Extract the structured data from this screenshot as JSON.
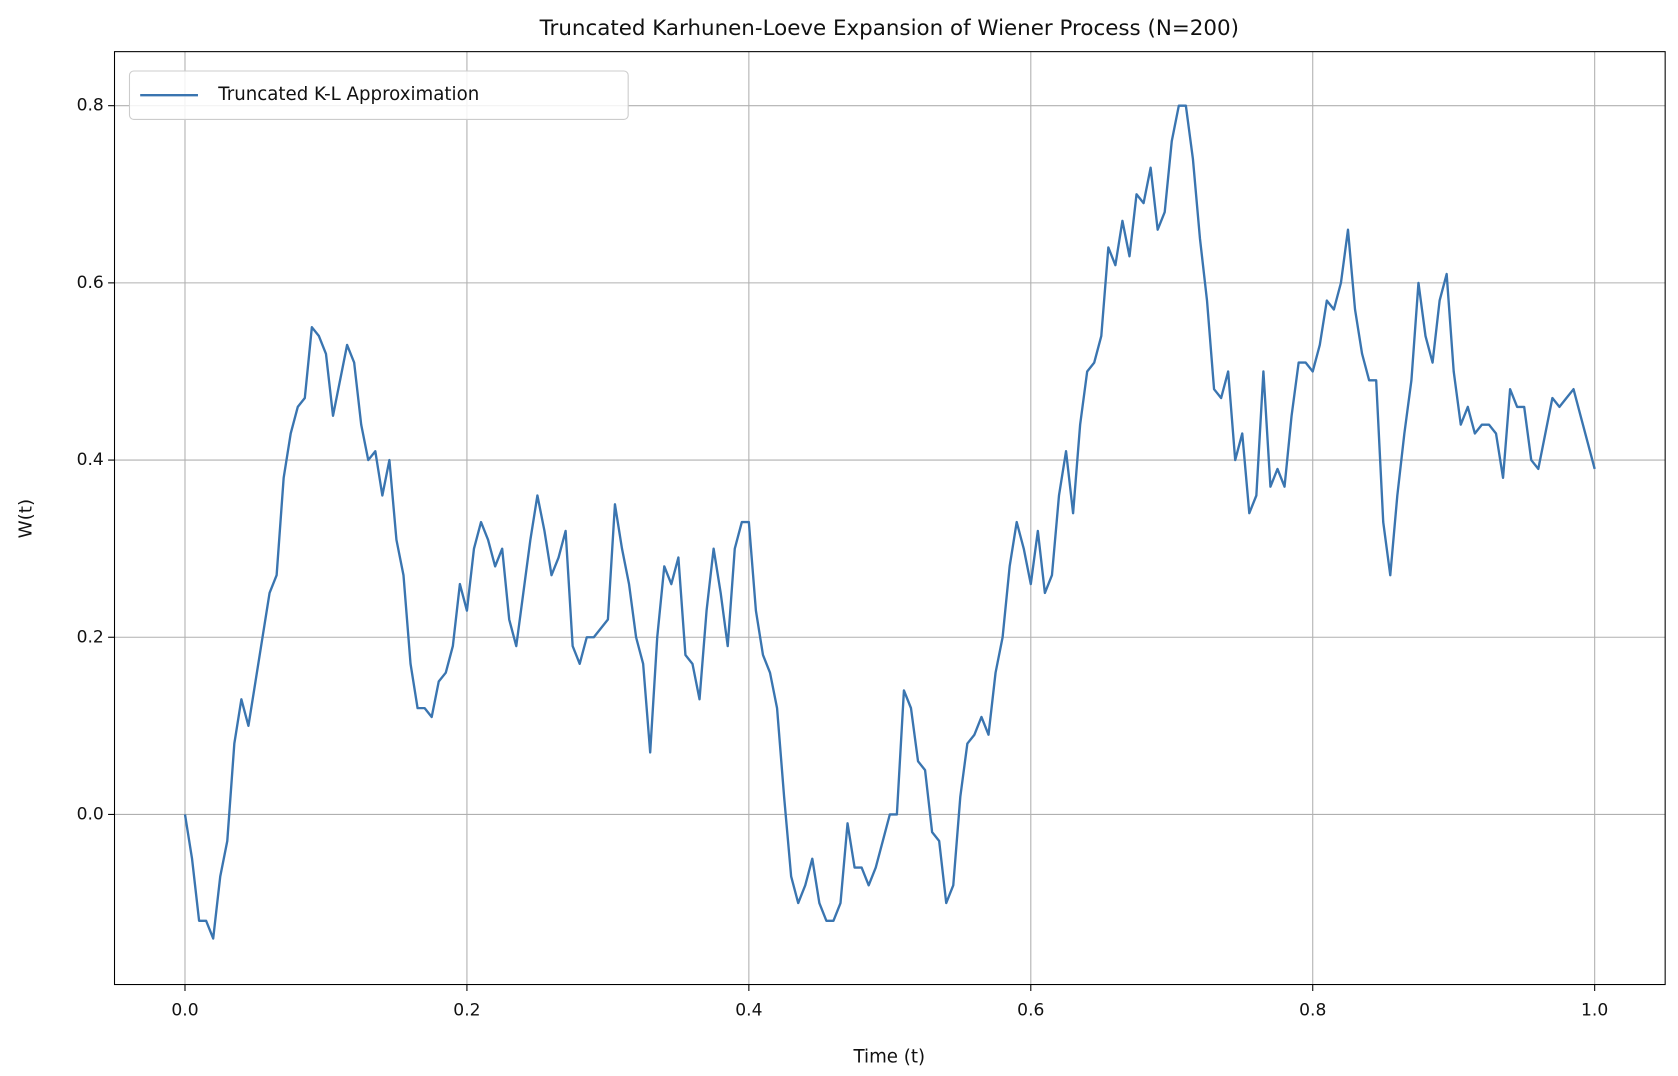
{
  "chart_data": {
    "type": "line",
    "title": "Truncated Karhunen-Loeve Expansion of Wiener Process (N=200)",
    "xlabel": "Time (t)",
    "ylabel": "W(t)",
    "xlim": [
      -0.05,
      1.05
    ],
    "ylim": [
      -0.192,
      0.861
    ],
    "xticks": [
      {
        "value": 0,
        "label": "0.0"
      },
      0.2,
      0.4,
      0.6,
      0.8,
      {
        "value": 1,
        "label": "1.0"
      }
    ],
    "yticks": [
      {
        "value": 0,
        "label": "0.0"
      },
      0.2,
      0.4,
      0.6,
      0.8
    ],
    "grid": true,
    "legend": "upper left",
    "x": [
      0,
      0.005,
      0.01,
      0.015,
      0.02,
      0.025,
      0.03,
      0.035,
      0.04,
      0.045,
      0.05,
      0.055,
      0.06,
      0.065,
      0.07,
      0.075,
      0.08,
      0.085,
      0.09,
      0.095,
      0.1,
      0.105,
      0.11,
      0.115,
      0.12,
      0.125,
      0.13,
      0.135,
      0.14,
      0.145,
      0.15,
      0.155,
      0.16,
      0.165,
      0.17,
      0.175,
      0.18,
      0.185,
      0.19,
      0.195,
      0.2,
      0.205,
      0.21,
      0.215,
      0.22,
      0.225,
      0.23,
      0.235,
      0.24,
      0.245,
      0.25,
      0.255,
      0.26,
      0.265,
      0.27,
      0.275,
      0.28,
      0.285,
      0.29,
      0.295,
      0.3,
      0.305,
      0.31,
      0.315,
      0.32,
      0.325,
      0.33,
      0.335,
      0.34,
      0.345,
      0.35,
      0.355,
      0.36,
      0.365,
      0.37,
      0.375,
      0.38,
      0.385,
      0.39,
      0.395,
      0.4,
      0.405,
      0.41,
      0.415,
      0.42,
      0.425,
      0.43,
      0.435,
      0.44,
      0.445,
      0.45,
      0.455,
      0.46,
      0.465,
      0.47,
      0.475,
      0.48,
      0.485,
      0.49,
      0.495,
      0.5,
      0.505,
      0.51,
      0.515,
      0.52,
      0.525,
      0.53,
      0.535,
      0.54,
      0.545,
      0.55,
      0.555,
      0.56,
      0.565,
      0.57,
      0.575,
      0.58,
      0.585,
      0.59,
      0.595,
      0.6,
      0.605,
      0.61,
      0.615,
      0.62,
      0.625,
      0.63,
      0.635,
      0.64,
      0.645,
      0.65,
      0.655,
      0.66,
      0.665,
      0.67,
      0.675,
      0.68,
      0.685,
      0.69,
      0.695,
      0.7,
      0.705,
      0.71,
      0.715,
      0.72,
      0.725,
      0.73,
      0.735,
      0.74,
      0.745,
      0.75,
      0.755,
      0.76,
      0.765,
      0.77,
      0.775,
      0.78,
      0.785,
      0.79,
      0.795,
      0.8,
      0.805,
      0.81,
      0.815,
      0.82,
      0.825,
      0.83,
      0.835,
      0.84,
      0.845,
      0.85,
      0.855,
      0.86,
      0.865,
      0.87,
      0.875,
      0.88,
      0.885,
      0.89,
      0.895,
      0.9,
      0.905,
      0.91,
      0.915,
      0.92,
      0.925,
      0.93,
      0.935,
      0.94,
      0.945,
      0.95,
      0.955,
      0.96,
      0.965,
      0.97,
      0.975,
      0.98,
      0.985,
      0.99,
      0.995,
      1
    ],
    "series": [
      {
        "name": "Truncated K-L Approximation",
        "color": "#3a75b0",
        "values": [
          0,
          -0.05,
          -0.12,
          -0.12,
          -0.14,
          -0.07,
          -0.03,
          0.08,
          0.13,
          0.1,
          0.15,
          0.2,
          0.25,
          0.27,
          0.38,
          0.43,
          0.46,
          0.47,
          0.55,
          0.54,
          0.52,
          0.45,
          0.49,
          0.53,
          0.51,
          0.44,
          0.4,
          0.41,
          0.36,
          0.4,
          0.31,
          0.27,
          0.17,
          0.12,
          0.12,
          0.11,
          0.15,
          0.16,
          0.19,
          0.26,
          0.23,
          0.3,
          0.33,
          0.31,
          0.28,
          0.3,
          0.22,
          0.19,
          0.25,
          0.31,
          0.36,
          0.32,
          0.27,
          0.29,
          0.32,
          0.19,
          0.17,
          0.2,
          0.2,
          0.21,
          0.22,
          0.35,
          0.3,
          0.26,
          0.2,
          0.17,
          0.07,
          0.2,
          0.28,
          0.26,
          0.29,
          0.18,
          0.17,
          0.13,
          0.23,
          0.3,
          0.25,
          0.19,
          0.3,
          0.33,
          0.33,
          0.23,
          0.18,
          0.16,
          0.12,
          0.02,
          -0.07,
          -0.1,
          -0.08,
          -0.05,
          -0.1,
          -0.12,
          -0.12,
          -0.1,
          -0.01,
          -0.06,
          -0.06,
          -0.08,
          -0.06,
          -0.03,
          0.0,
          0.0,
          0.14,
          0.12,
          0.06,
          0.05,
          -0.02,
          -0.03,
          -0.1,
          -0.08,
          0.02,
          0.08,
          0.09,
          0.11,
          0.09,
          0.16,
          0.2,
          0.28,
          0.33,
          0.3,
          0.26,
          0.32,
          0.25,
          0.27,
          0.36,
          0.41,
          0.34,
          0.44,
          0.5,
          0.51,
          0.54,
          0.64,
          0.62,
          0.67,
          0.63,
          0.7,
          0.69,
          0.73,
          0.66,
          0.68,
          0.76,
          0.8,
          0.8,
          0.74,
          0.65,
          0.58,
          0.48,
          0.47,
          0.5,
          0.4,
          0.43,
          0.34,
          0.36,
          0.5,
          0.37,
          0.39,
          0.37,
          0.45,
          0.51,
          0.51,
          0.5,
          0.53,
          0.58,
          0.57,
          0.6,
          0.66,
          0.57,
          0.52,
          0.49,
          0.49,
          0.33,
          0.27,
          0.36,
          0.43,
          0.49,
          0.6,
          0.54,
          0.51,
          0.58,
          0.61,
          0.5,
          0.44,
          0.46,
          0.43,
          0.44,
          0.44,
          0.43,
          0.38,
          0.48,
          0.46,
          0.46,
          0.4,
          0.39,
          0.43,
          0.47,
          0.46,
          0.47,
          0.48,
          0.45,
          0.42,
          0.39
        ]
      }
    ]
  }
}
